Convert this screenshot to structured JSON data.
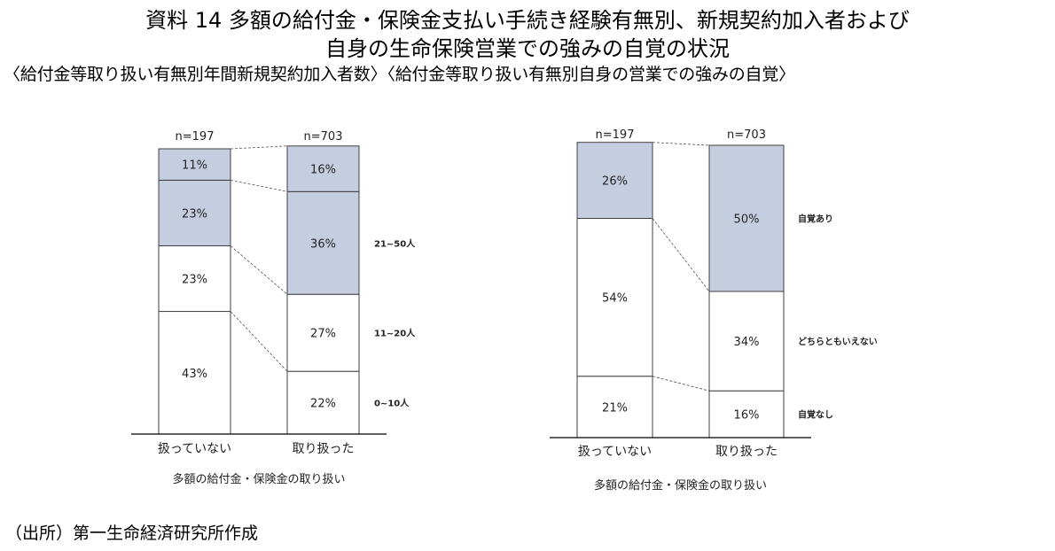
{
  "header": {
    "title_line1": "資料 14 多額の給付金・保険金支払い手続き経験有無別、新規契約加入者および",
    "title_line2": "自身の生命保険営業での強みの自覚の状況",
    "subtitle": "〈給付金等取り扱い有無別年間新規契約加入者数〉〈給付金等取り扱い有無別自身の営業での強みの自覚〉"
  },
  "footer": {
    "source": "（出所）第一生命経済研究所作成"
  },
  "colors": {
    "filled": "#c5cde0",
    "empty": "#ffffff",
    "border": "#404040"
  },
  "chart_data": [
    {
      "type": "bar",
      "stacked": true,
      "percent": true,
      "title": "",
      "xlabel": "多額の給付金・保険金の取り扱い",
      "ylabel": "",
      "categories": [
        "扱っていない",
        "取り扱った"
      ],
      "n_labels": [
        "n=197",
        "n=703"
      ],
      "series": [
        {
          "name": "0~10人",
          "values": [
            43,
            22
          ],
          "filled": false
        },
        {
          "name": "11~20人",
          "values": [
            23,
            27
          ],
          "filled": false
        },
        {
          "name": "21~50人",
          "values": [
            23,
            36
          ],
          "filled": true
        },
        {
          "name": "",
          "values": [
            11,
            16
          ],
          "filled": true
        }
      ],
      "ylim": [
        0,
        100
      ],
      "grid": false,
      "legend": "right"
    },
    {
      "type": "bar",
      "stacked": true,
      "percent": true,
      "title": "",
      "xlabel": "多額の給付金・保険金の取り扱い",
      "ylabel": "",
      "categories": [
        "扱っていない",
        "取り扱った"
      ],
      "n_labels": [
        "n=197",
        "n=703"
      ],
      "series": [
        {
          "name": "自覚なし",
          "values": [
            21,
            16
          ],
          "filled": false
        },
        {
          "name": "どちらともいえない",
          "values": [
            54,
            34
          ],
          "filled": false
        },
        {
          "name": "自覚あり",
          "values": [
            26,
            50
          ],
          "filled": true
        }
      ],
      "ylim": [
        0,
        100
      ],
      "grid": false,
      "legend": "right"
    }
  ]
}
